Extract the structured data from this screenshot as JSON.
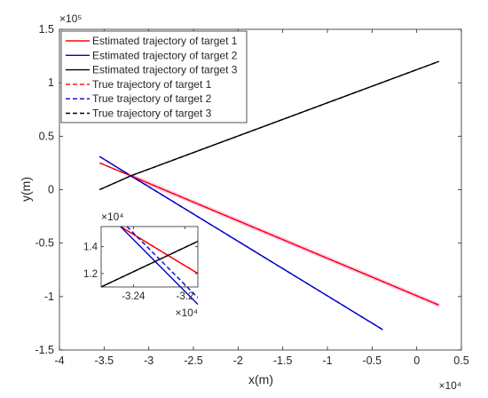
{
  "chart_data": [
    {
      "type": "line",
      "xlabel": "x(m)",
      "ylabel": "y(m)",
      "x_multiplier": "×10⁴",
      "y_multiplier": "×10⁵",
      "xlim": [
        -4,
        0.5
      ],
      "ylim": [
        -1.5,
        1.5
      ],
      "x_ticks": [
        -4,
        -3.5,
        -3,
        -2.5,
        -2,
        -1.5,
        -1,
        -0.5,
        0,
        0.5
      ],
      "x_tick_labels": [
        "-4",
        "-3.5",
        "-3",
        "-2.5",
        "-2",
        "-1.5",
        "-1",
        "-0.5",
        "0",
        "0.5"
      ],
      "y_ticks": [
        -1.5,
        -1,
        -0.5,
        0,
        0.5,
        1,
        1.5
      ],
      "y_tick_labels": [
        "-1.5",
        "-1",
        "-0.5",
        "0",
        "0.5",
        "1",
        "1.5"
      ],
      "grid": false,
      "legend_position": "top-left",
      "series": [
        {
          "name": "Estimated trajectory of target 1",
          "color": "#ff0000",
          "style": "solid",
          "x": [
            -3.55,
            -3.2,
            0.25
          ],
          "y": [
            0.25,
            0.13,
            -1.08
          ]
        },
        {
          "name": "Estimated trajectory of target 2",
          "color": "#0000cc",
          "style": "solid",
          "x": [
            -3.55,
            -3.2,
            -0.38
          ],
          "y": [
            0.31,
            0.13,
            -1.31
          ]
        },
        {
          "name": "Estimated trajectory of target 3",
          "color": "#000000",
          "style": "solid",
          "x": [
            -3.55,
            -3.2,
            0.25
          ],
          "y": [
            0.0,
            0.13,
            1.2
          ]
        },
        {
          "name": "True trajectory of target 1",
          "color": "#ff0000",
          "style": "dashed",
          "x": [
            -3.55,
            -3.2,
            0.25
          ],
          "y": [
            0.25,
            0.13,
            -1.08
          ]
        },
        {
          "name": "True trajectory of target 2",
          "color": "#0000cc",
          "style": "dashed",
          "x": [
            -3.55,
            -3.2,
            -0.38
          ],
          "y": [
            0.31,
            0.13,
            -1.31
          ]
        },
        {
          "name": "True trajectory of target 3",
          "color": "#000000",
          "style": "dashed",
          "x": [
            -3.55,
            -3.2,
            0.25
          ],
          "y": [
            0.0,
            0.13,
            1.2
          ]
        }
      ]
    },
    {
      "type": "line",
      "role": "inset",
      "x_multiplier": "×10⁴",
      "y_multiplier": "×10⁴",
      "xlim": [
        -3.265,
        -3.19
      ],
      "ylim": [
        1.1,
        1.55
      ],
      "x_ticks": [
        -3.24,
        -3.2
      ],
      "x_tick_labels": [
        "-3.24",
        "-3.2"
      ],
      "y_ticks": [
        1.2,
        1.4
      ],
      "y_tick_labels": [
        "1.2",
        "1.4"
      ],
      "series": [
        {
          "name": "Estimated trajectory of target 1",
          "color": "#ff0000",
          "style": "solid",
          "x": [
            -3.25,
            -3.19
          ],
          "y": [
            1.55,
            1.2
          ]
        },
        {
          "name": "True trajectory of target 1",
          "color": "#ff0000",
          "style": "dashed",
          "x": [
            -3.25,
            -3.19
          ],
          "y": [
            1.55,
            1.2
          ]
        },
        {
          "name": "Estimated trajectory of target 2",
          "color": "#0000cc",
          "style": "solid",
          "x": [
            -3.25,
            -3.19
          ],
          "y": [
            1.55,
            0.97
          ]
        },
        {
          "name": "True trajectory of target 2",
          "color": "#0000cc",
          "style": "dashed",
          "x": [
            -3.245,
            -3.19
          ],
          "y": [
            1.55,
            1.02
          ]
        },
        {
          "name": "Estimated trajectory of target 3",
          "color": "#000000",
          "style": "solid",
          "x": [
            -3.265,
            -3.19
          ],
          "y": [
            1.1,
            1.44
          ]
        },
        {
          "name": "True trajectory of target 3",
          "color": "#000000",
          "style": "dashed",
          "x": [
            -3.265,
            -3.19
          ],
          "y": [
            1.1,
            1.44
          ]
        }
      ]
    }
  ]
}
